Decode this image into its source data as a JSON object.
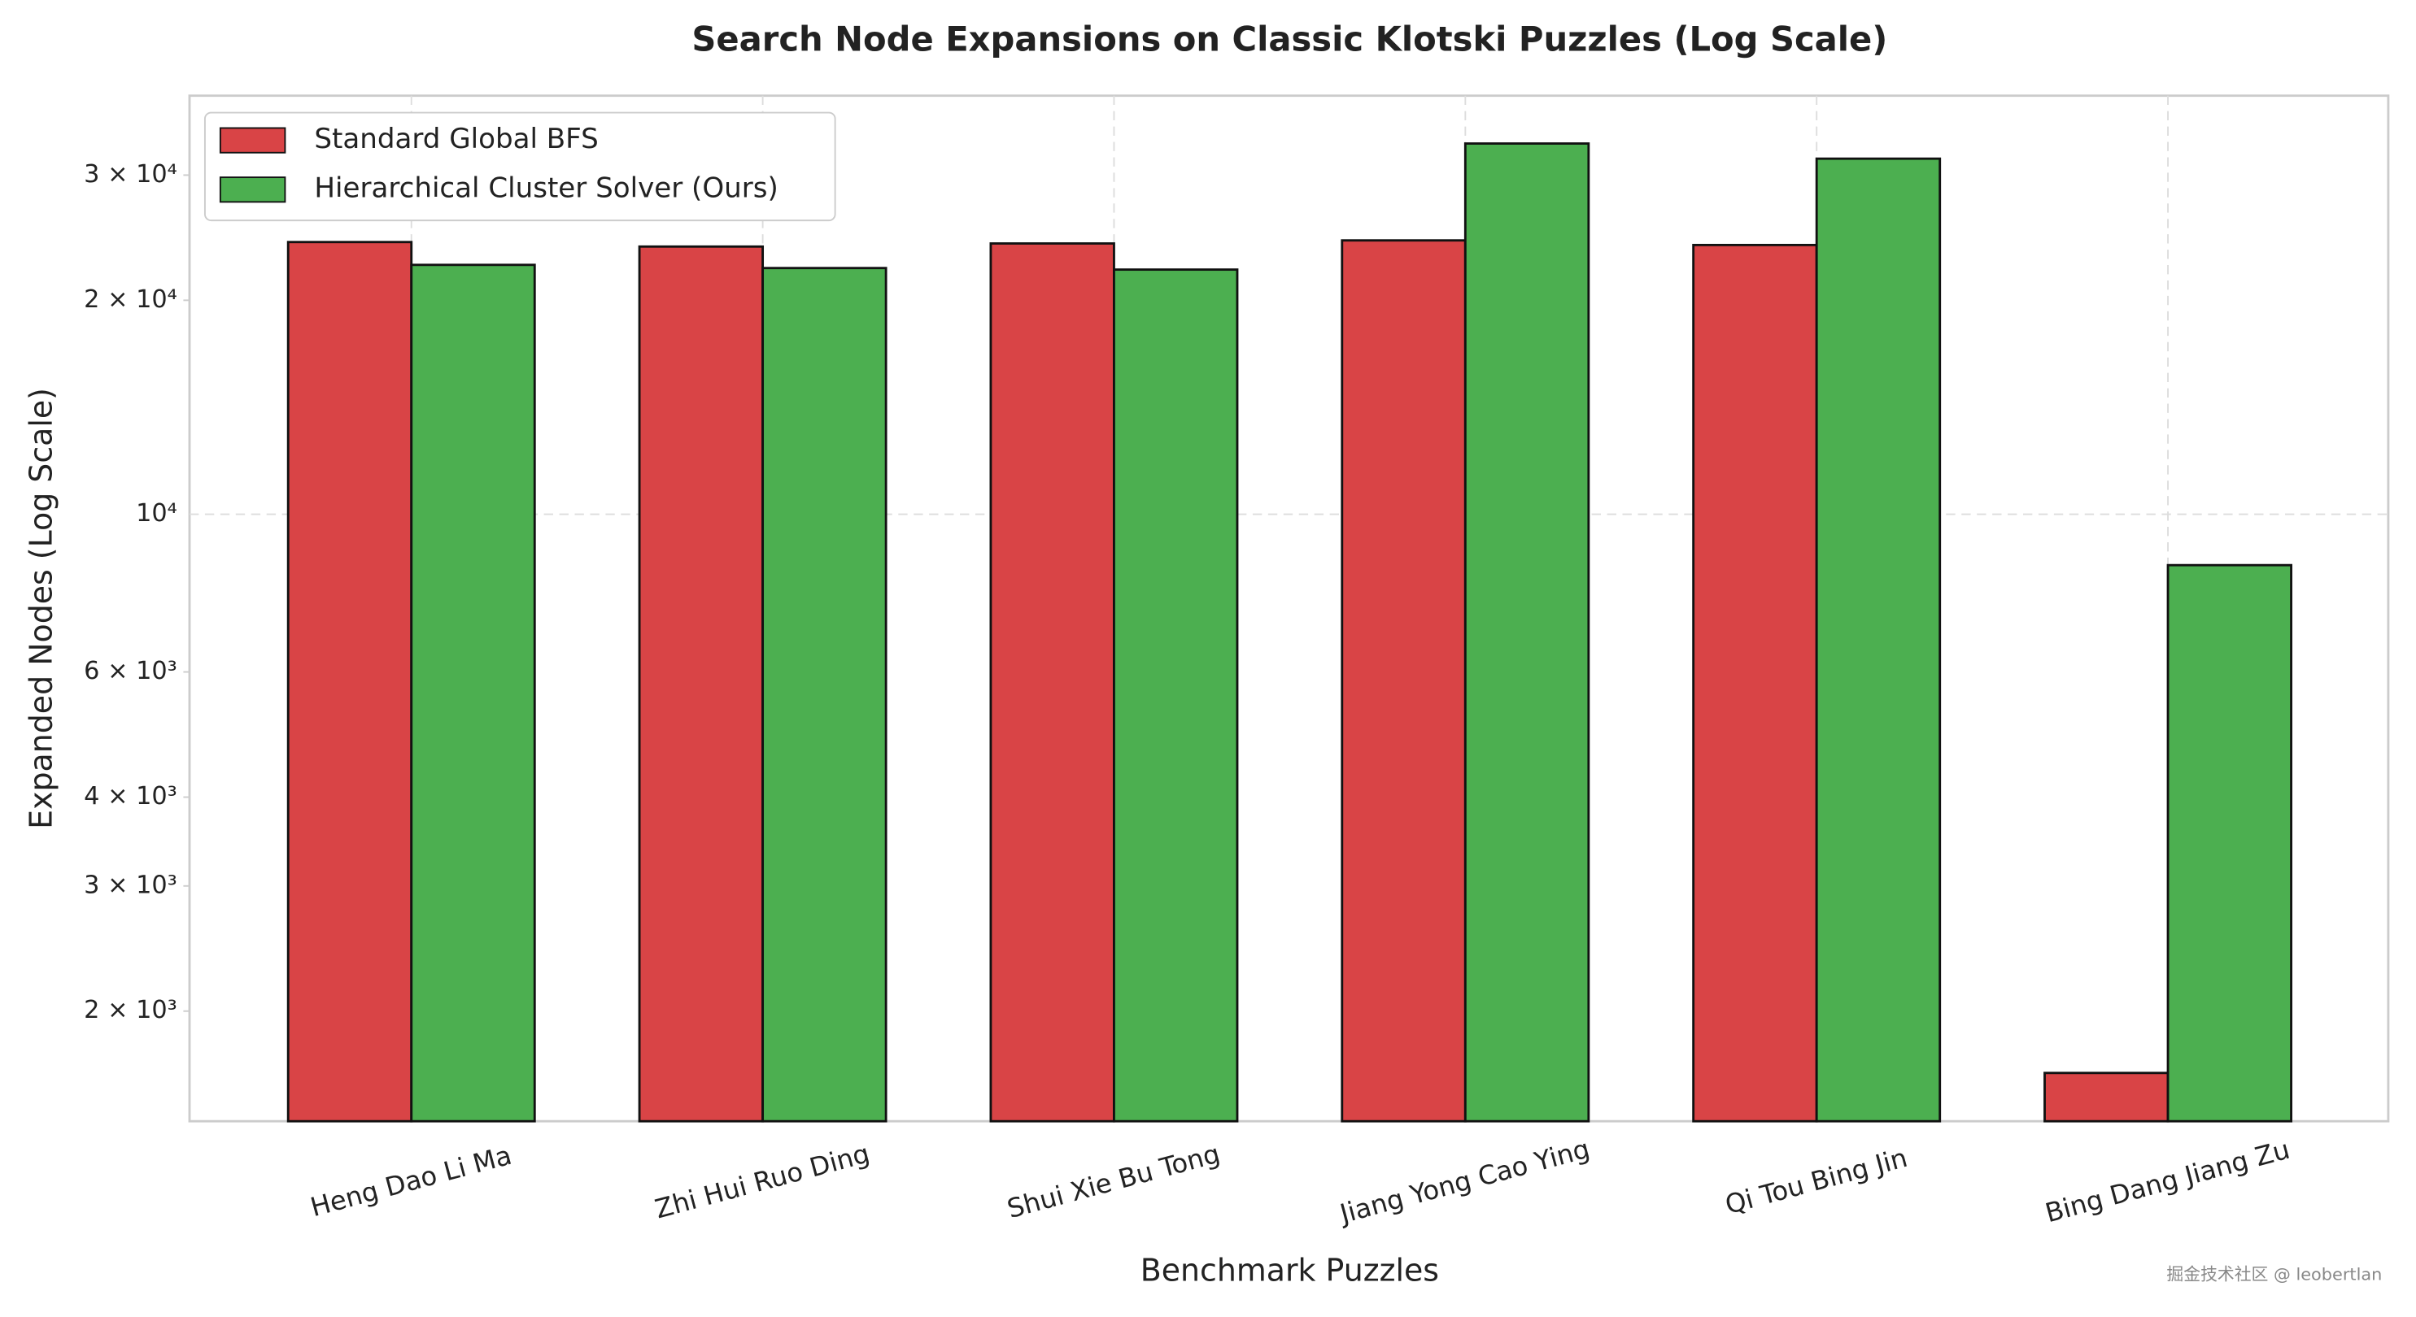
{
  "chart_data": {
    "type": "bar",
    "title": "Search Node Expansions on Classic Klotski Puzzles (Log Scale)",
    "x_label": "Benchmark Puzzles",
    "y_label": "Expanded Nodes (Log Scale)",
    "log_scale": true,
    "legend": "upper left",
    "categories": [
      "Heng Dao Li Ma",
      "Zhi Hui Ruo Ding",
      "Shui Xie Bu Tong",
      "Jiang Yong Cao Ying",
      "Qi Tou Bing Jin",
      "Bing Dang Jiang Zu"
    ],
    "series": [
      {
        "name": "Standard Global BFS",
        "color": "#d94446",
        "values": [
          24150,
          23800,
          24040,
          24280,
          23920,
          1637
        ]
      },
      {
        "name": "Hierarchical Cluster Solver (Ours)",
        "color": "#4caf50",
        "values": [
          22430,
          22200,
          22090,
          33230,
          31640,
          8480
        ]
      }
    ],
    "ylim": [
      1400,
      38800
    ],
    "yticks": [
      {
        "value": 2000,
        "label": "2 × 10³"
      },
      {
        "value": 3000,
        "label": "3 × 10³"
      },
      {
        "value": 4000,
        "label": "4 × 10³"
      },
      {
        "value": 6000,
        "label": "6 × 10³"
      },
      {
        "value": 10000,
        "label": "10⁴"
      },
      {
        "value": 20000,
        "label": "2 × 10⁴"
      },
      {
        "value": 30000,
        "label": "3 × 10⁴"
      }
    ],
    "watermark": "掘金技术社区 @ leobertlan"
  }
}
